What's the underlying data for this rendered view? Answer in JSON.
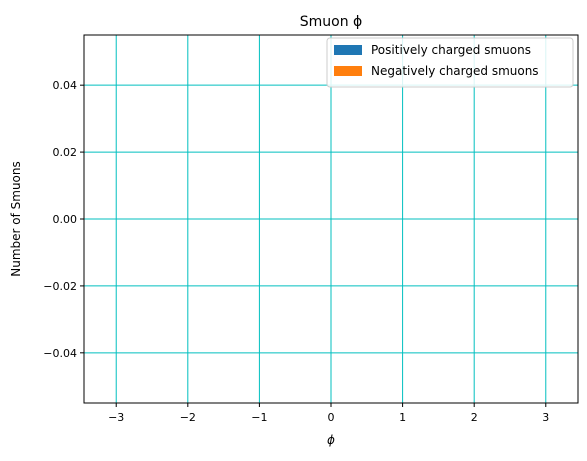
{
  "chart_data": {
    "type": "bar",
    "title": "Smuon ϕ",
    "xlabel": "ϕ",
    "ylabel": "Number of Smuons",
    "xlim": [
      -3.45,
      3.45
    ],
    "ylim": [
      -0.055,
      0.055
    ],
    "x_ticks": [
      -3,
      -2,
      -1,
      0,
      1,
      2,
      3
    ],
    "x_tick_labels": [
      "−3",
      "−2",
      "−1",
      "0",
      "1",
      "2",
      "3"
    ],
    "y_ticks": [
      -0.04,
      -0.02,
      0.0,
      0.02,
      0.04
    ],
    "y_tick_labels": [
      "−0.04",
      "−0.02",
      "0.00",
      "0.02",
      "0.04"
    ],
    "grid": true,
    "grid_color": "#00bfbf",
    "legend_position": "top-right",
    "series": [
      {
        "name": "Positively charged smuons",
        "color": "#1f77b4",
        "values": []
      },
      {
        "name": "Negatively charged smuons",
        "color": "#ff7f0e",
        "values": []
      }
    ]
  }
}
